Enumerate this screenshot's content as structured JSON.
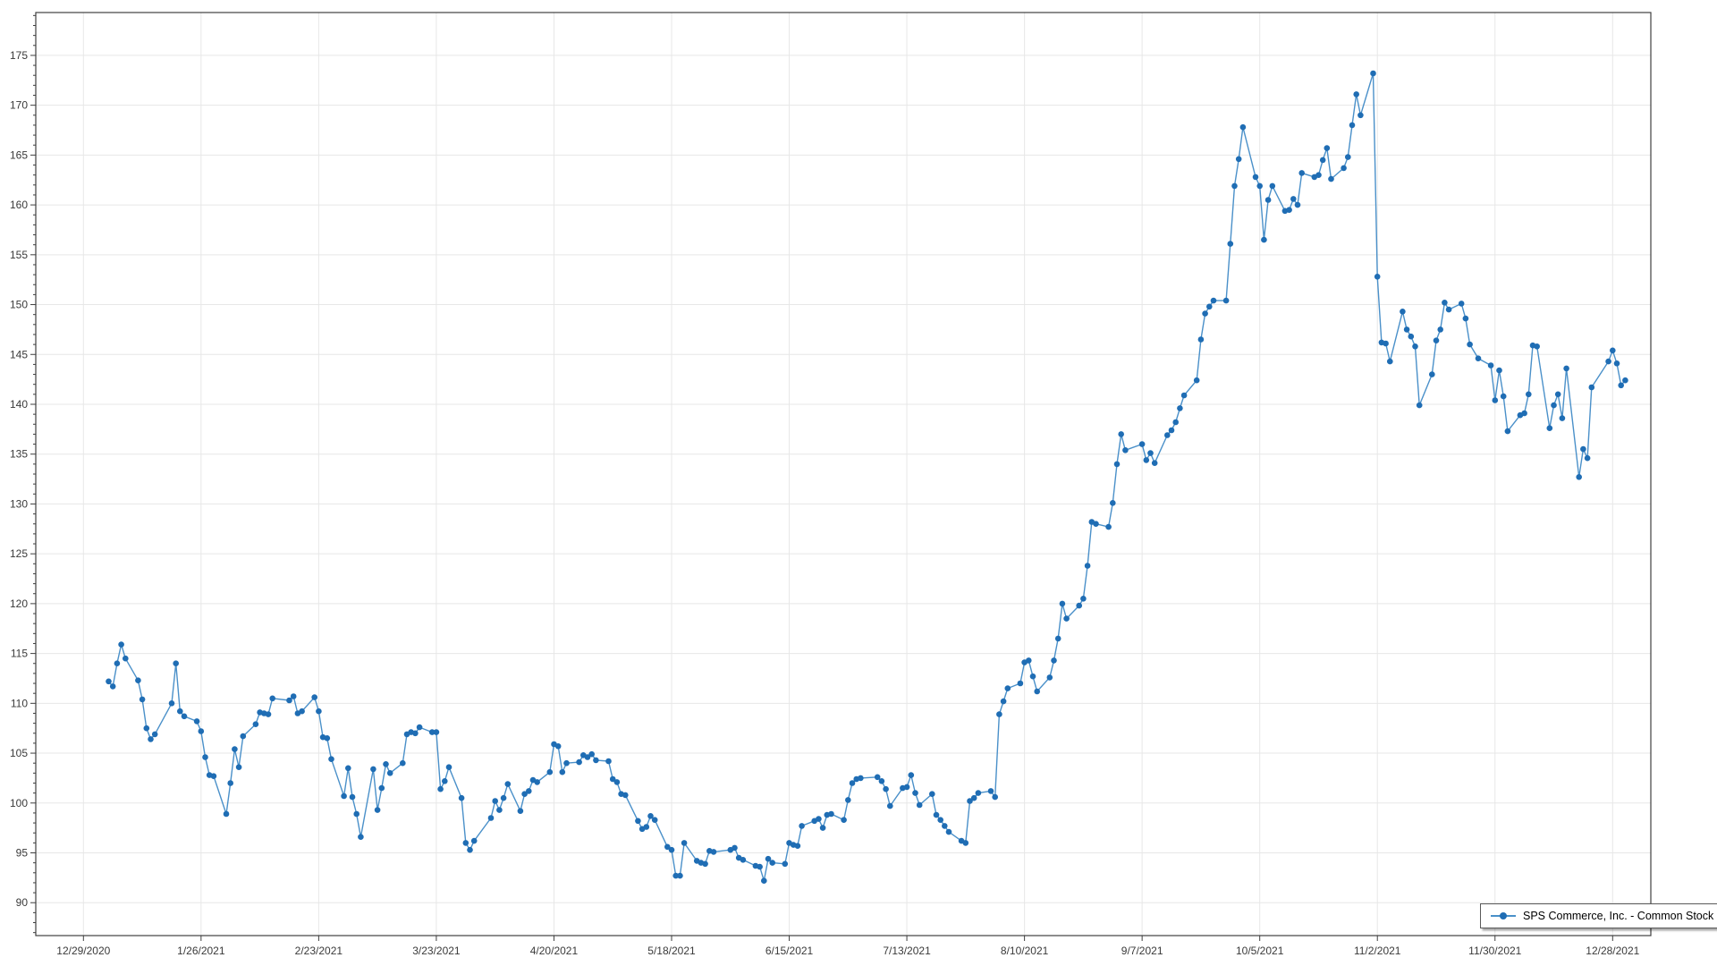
{
  "chart_data": {
    "type": "line",
    "title": "",
    "xlabel": "",
    "ylabel": "",
    "grid": true,
    "legend_position": "bottom-right",
    "series_name": "SPS Commerce, Inc. - Common Stock",
    "x_base_date": "12/29/2020",
    "x_tick_labels": [
      "12/29/2020",
      "1/26/2021",
      "2/23/2021",
      "3/23/2021",
      "4/20/2021",
      "5/18/2021",
      "6/15/2021",
      "7/13/2021",
      "8/10/2021",
      "9/7/2021",
      "10/5/2021",
      "11/2/2021",
      "11/30/2021",
      "12/28/2021"
    ],
    "y_ticks": [
      90,
      95,
      100,
      105,
      110,
      115,
      120,
      125,
      130,
      135,
      140,
      145,
      150,
      155,
      160,
      165,
      170,
      175
    ],
    "y_minor_step": 1,
    "ylim": [
      86.7,
      179.3
    ],
    "colors": {
      "line": "#4a90c9",
      "marker": "#1f6db4",
      "grid": "#e7e7e7",
      "axis_border": "#3f3f3f",
      "tick": "#3f3f3f",
      "tick_label": "#3a3a3a",
      "legend_border": "#5a5a5a",
      "background": "#ffffff"
    },
    "dates": [
      "1/4/2021",
      "1/5/2021",
      "1/6/2021",
      "1/7/2021",
      "1/8/2021",
      "1/11/2021",
      "1/12/2021",
      "1/13/2021",
      "1/14/2021",
      "1/15/2021",
      "1/19/2021",
      "1/20/2021",
      "1/21/2021",
      "1/22/2021",
      "1/25/2021",
      "1/26/2021",
      "1/27/2021",
      "1/28/2021",
      "1/29/2021",
      "2/1/2021",
      "2/2/2021",
      "2/3/2021",
      "2/4/2021",
      "2/5/2021",
      "2/8/2021",
      "2/9/2021",
      "2/10/2021",
      "2/11/2021",
      "2/12/2021",
      "2/16/2021",
      "2/17/2021",
      "2/18/2021",
      "2/19/2021",
      "2/22/2021",
      "2/23/2021",
      "2/24/2021",
      "2/25/2021",
      "2/26/2021",
      "3/1/2021",
      "3/2/2021",
      "3/3/2021",
      "3/4/2021",
      "3/5/2021",
      "3/8/2021",
      "3/9/2021",
      "3/10/2021",
      "3/11/2021",
      "3/12/2021",
      "3/15/2021",
      "3/16/2021",
      "3/17/2021",
      "3/18/2021",
      "3/19/2021",
      "3/22/2021",
      "3/23/2021",
      "3/24/2021",
      "3/25/2021",
      "3/26/2021",
      "3/29/2021",
      "3/30/2021",
      "3/31/2021",
      "4/1/2021",
      "4/5/2021",
      "4/6/2021",
      "4/7/2021",
      "4/8/2021",
      "4/9/2021",
      "4/12/2021",
      "4/13/2021",
      "4/14/2021",
      "4/15/2021",
      "4/16/2021",
      "4/19/2021",
      "4/20/2021",
      "4/21/2021",
      "4/22/2021",
      "4/23/2021",
      "4/26/2021",
      "4/27/2021",
      "4/28/2021",
      "4/29/2021",
      "4/30/2021",
      "5/3/2021",
      "5/4/2021",
      "5/5/2021",
      "5/6/2021",
      "5/7/2021",
      "5/10/2021",
      "5/11/2021",
      "5/12/2021",
      "5/13/2021",
      "5/14/2021",
      "5/17/2021",
      "5/18/2021",
      "5/19/2021",
      "5/20/2021",
      "5/21/2021",
      "5/24/2021",
      "5/25/2021",
      "5/26/2021",
      "5/27/2021",
      "5/28/2021",
      "6/1/2021",
      "6/2/2021",
      "6/3/2021",
      "6/4/2021",
      "6/7/2021",
      "6/8/2021",
      "6/9/2021",
      "6/10/2021",
      "6/11/2021",
      "6/14/2021",
      "6/15/2021",
      "6/16/2021",
      "6/17/2021",
      "6/18/2021",
      "6/21/2021",
      "6/22/2021",
      "6/23/2021",
      "6/24/2021",
      "6/25/2021",
      "6/28/2021",
      "6/29/2021",
      "6/30/2021",
      "7/1/2021",
      "7/2/2021",
      "7/6/2021",
      "7/7/2021",
      "7/8/2021",
      "7/9/2021",
      "7/12/2021",
      "7/13/2021",
      "7/14/2021",
      "7/15/2021",
      "7/16/2021",
      "7/19/2021",
      "7/20/2021",
      "7/21/2021",
      "7/22/2021",
      "7/23/2021",
      "7/26/2021",
      "7/27/2021",
      "7/28/2021",
      "7/29/2021",
      "7/30/2021",
      "8/2/2021",
      "8/3/2021",
      "8/4/2021",
      "8/5/2021",
      "8/6/2021",
      "8/9/2021",
      "8/10/2021",
      "8/11/2021",
      "8/12/2021",
      "8/13/2021",
      "8/16/2021",
      "8/17/2021",
      "8/18/2021",
      "8/19/2021",
      "8/20/2021",
      "8/23/2021",
      "8/24/2021",
      "8/25/2021",
      "8/26/2021",
      "8/27/2021",
      "8/30/2021",
      "8/31/2021",
      "9/1/2021",
      "9/2/2021",
      "9/3/2021",
      "9/7/2021",
      "9/8/2021",
      "9/9/2021",
      "9/10/2021",
      "9/13/2021",
      "9/14/2021",
      "9/15/2021",
      "9/16/2021",
      "9/17/2021",
      "9/20/2021",
      "9/21/2021",
      "9/22/2021",
      "9/23/2021",
      "9/24/2021",
      "9/27/2021",
      "9/28/2021",
      "9/29/2021",
      "9/30/2021",
      "10/1/2021",
      "10/4/2021",
      "10/5/2021",
      "10/6/2021",
      "10/7/2021",
      "10/8/2021",
      "10/11/2021",
      "10/12/2021",
      "10/13/2021",
      "10/14/2021",
      "10/15/2021",
      "10/18/2021",
      "10/19/2021",
      "10/20/2021",
      "10/21/2021",
      "10/22/2021",
      "10/25/2021",
      "10/26/2021",
      "10/27/2021",
      "10/28/2021",
      "10/29/2021",
      "11/1/2021",
      "11/2/2021",
      "11/3/2021",
      "11/4/2021",
      "11/5/2021",
      "11/8/2021",
      "11/9/2021",
      "11/10/2021",
      "11/11/2021",
      "11/12/2021",
      "11/15/2021",
      "11/16/2021",
      "11/17/2021",
      "11/18/2021",
      "11/19/2021",
      "11/22/2021",
      "11/23/2021",
      "11/24/2021",
      "11/26/2021",
      "11/29/2021",
      "11/30/2021",
      "12/1/2021",
      "12/2/2021",
      "12/3/2021",
      "12/6/2021",
      "12/7/2021",
      "12/8/2021",
      "12/9/2021",
      "12/10/2021",
      "12/13/2021",
      "12/14/2021",
      "12/15/2021",
      "12/16/2021",
      "12/17/2021",
      "12/20/2021",
      "12/21/2021",
      "12/22/2021",
      "12/23/2021",
      "12/27/2021",
      "12/28/2021",
      "12/29/2021",
      "12/30/2021",
      "12/31/2021"
    ],
    "values": [
      112.2,
      111.7,
      114,
      115.9,
      114.5,
      112.3,
      110.4,
      107.5,
      106.4,
      106.9,
      110,
      114,
      109.2,
      108.7,
      108.2,
      107.2,
      104.6,
      102.8,
      102.7,
      98.9,
      102,
      105.4,
      103.6,
      106.7,
      107.9,
      109.1,
      109,
      108.9,
      110.5,
      110.3,
      110.7,
      109,
      109.2,
      110.6,
      109.2,
      106.6,
      106.5,
      104.4,
      100.7,
      103.5,
      100.6,
      98.9,
      96.6,
      103.4,
      99.3,
      101.5,
      103.9,
      103,
      104,
      106.9,
      107.1,
      107,
      107.6,
      107.1,
      107.1,
      101.4,
      102.2,
      103.6,
      100.5,
      96,
      95.3,
      96.2,
      98.5,
      100.2,
      99.3,
      100.5,
      101.9,
      99.2,
      100.9,
      101.2,
      102.3,
      102.1,
      103.1,
      105.9,
      105.7,
      103.1,
      104,
      104.1,
      104.8,
      104.6,
      104.9,
      104.3,
      104.2,
      102.4,
      102.1,
      100.9,
      100.8,
      98.2,
      97.4,
      97.6,
      98.7,
      98.3,
      95.6,
      95.3,
      92.7,
      92.7,
      96,
      94.2,
      94,
      93.9,
      95.2,
      95.1,
      95.3,
      95.5,
      94.5,
      94.3,
      93.7,
      93.6,
      92.2,
      94.4,
      94,
      93.9,
      96,
      95.8,
      95.7,
      97.7,
      98.2,
      98.4,
      97.5,
      98.8,
      98.9,
      98.3,
      100.3,
      102,
      102.4,
      102.5,
      102.6,
      102.2,
      101.4,
      99.7,
      101.5,
      101.6,
      102.8,
      101,
      99.8,
      100.9,
      98.8,
      98.3,
      97.7,
      97.1,
      96.2,
      96,
      100.2,
      100.5,
      101,
      101.2,
      100.6,
      108.9,
      110.2,
      111.5,
      112,
      114.1,
      114.3,
      112.7,
      111.2,
      112.6,
      114.3,
      116.5,
      120,
      118.5,
      119.8,
      120.5,
      123.8,
      128.2,
      128,
      127.7,
      130.1,
      134,
      137,
      135.4,
      136,
      134.4,
      135.1,
      134.1,
      136.9,
      137.4,
      138.2,
      139.6,
      140.9,
      142.4,
      146.5,
      149.1,
      149.8,
      150.4,
      150.4,
      156.1,
      161.9,
      164.6,
      167.8,
      162.8,
      161.9,
      156.5,
      160.5,
      161.9,
      159.4,
      159.5,
      160.6,
      160,
      163.2,
      162.8,
      163,
      164.5,
      165.7,
      162.6,
      163.7,
      164.8,
      168,
      171.1,
      169,
      173.2,
      152.8,
      146.2,
      146.1,
      144.3,
      149.3,
      147.5,
      146.8,
      145.8,
      139.9,
      143,
      146.4,
      147.5,
      150.2,
      149.5,
      150.1,
      148.6,
      146,
      144.6,
      143.9,
      140.4,
      143.4,
      140.8,
      137.3,
      138.9,
      139.1,
      141,
      145.9,
      145.8,
      137.6,
      139.9,
      141,
      138.6,
      143.6,
      132.7,
      135.5,
      134.6,
      141.7,
      144.3,
      145.4,
      144.1,
      141.9,
      142.4
    ]
  }
}
